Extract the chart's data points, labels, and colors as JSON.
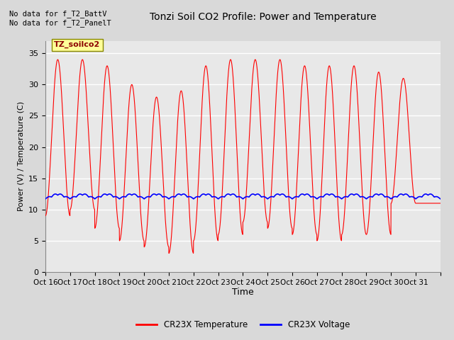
{
  "title": "Tonzi Soil CO2 Profile: Power and Temperature",
  "ylabel": "Power (V) / Temperature (C)",
  "xlabel": "Time",
  "top_note": "No data for f_T2_BattV\nNo data for f_T2_PanelT",
  "legend_label_box": "TZ_soilco2",
  "legend_entries": [
    "CR23X Temperature",
    "CR23X Voltage"
  ],
  "legend_colors": [
    "#ff0000",
    "#0000ff"
  ],
  "ylim": [
    0,
    37
  ],
  "yticks": [
    0,
    5,
    10,
    15,
    20,
    25,
    30,
    35
  ],
  "x_tick_labels": [
    "Oct 16",
    "Oct 17",
    "Oct 18",
    "Oct 19",
    "Oct 20",
    "Oct 21",
    "Oct 22",
    "Oct 23",
    "Oct 24",
    "Oct 25",
    "Oct 26",
    "Oct 27",
    "Oct 28",
    "Oct 29",
    "Oct 30",
    "Oct 31",
    ""
  ],
  "bg_color": "#d9d9d9",
  "plot_bg_color": "#e8e8e8",
  "temp_color": "#ff0000",
  "volt_color": "#0000ff",
  "peak_heights": [
    34,
    34,
    33,
    30,
    28,
    29,
    33,
    34,
    34,
    34,
    33,
    33,
    33,
    32,
    31,
    11
  ],
  "trough_depths": [
    9,
    10,
    7,
    5,
    4,
    3,
    5,
    6,
    8,
    7,
    6,
    5,
    6,
    6,
    11,
    11
  ]
}
